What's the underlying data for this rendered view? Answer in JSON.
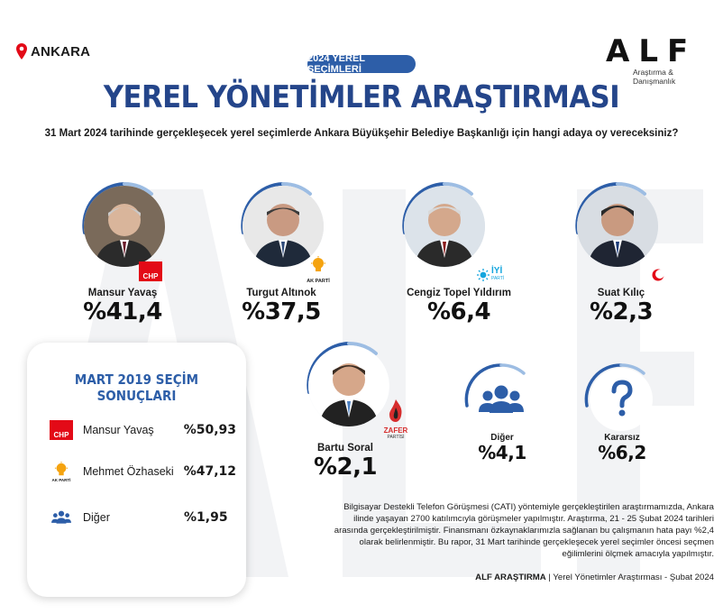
{
  "header": {
    "location": "ANKARA",
    "logo_mark": "ALF",
    "logo_sub": "Araştırma & Danışmanlık",
    "badge": "2024 YEREL SEÇİMLERİ",
    "title": "YEREL YÖNETİMLER ARAŞTIRMASI",
    "question": "31 Mart 2024 tarihinde gerçekleşecek yerel seçimlerde Ankara Büyükşehir Belediye Başkanlığı için hangi adaya oy vereceksiniz?"
  },
  "chart_data": {
    "type": "table",
    "title": "YEREL YÖNETİMLER ARAŞTIRMASI",
    "categories": [
      "Mansur Yavaş",
      "Turgut Altınok",
      "Cengiz Topel Yıldırım",
      "Suat Kılıç",
      "Bartu Soral",
      "Diğer",
      "Kararsız"
    ],
    "values": [
      41.4,
      37.5,
      6.4,
      2.3,
      2.1,
      4.1,
      6.2
    ],
    "labels": [
      "%41,4",
      "%37,5",
      "%6,4",
      "%2,3",
      "%2,1",
      "%4,1",
      "%6,2"
    ],
    "parties": [
      "CHP",
      "AK PARTİ",
      "İYİ PARTİ",
      "YENİDEN REFAH",
      "ZAFER PARTİSİ",
      "",
      ""
    ],
    "party_colors": [
      "#e30a17",
      "#f5a30f",
      "#13a5de",
      "#e30a17",
      "#d62d2d",
      "#2d5ea8",
      "#2d5ea8"
    ]
  },
  "panel": {
    "title": "MART 2019 SEÇİM SONUÇLARI",
    "rows": [
      {
        "name": "Mansur Yavaş",
        "value": "%50,93",
        "logo": "CHP",
        "color": "#e30a17"
      },
      {
        "name": "Mehmet Özhaseki",
        "value": "%47,12",
        "logo": "AK PARTİ",
        "color": "#f5a30f"
      },
      {
        "name": "Diğer",
        "value": "%1,95",
        "logo": "",
        "color": "#2d5ea8"
      }
    ]
  },
  "party_labels": {
    "chp": "CHP",
    "ak": "AK PARTİ",
    "iyi": "İYİ",
    "iyi_sub": "PARTİ",
    "zafer": "ZAFER",
    "zafer_sub": "PARTİSİ"
  },
  "icons": {
    "other": "people-group-icon",
    "undecided": "question-mark-icon",
    "location": "map-pin-icon"
  },
  "methodology": "Bilgisayar Destekli Telefon Görüşmesi (CATI) yöntemiyle gerçekleştirilen araştırmamızda, Ankara ilinde yaşayan 2700 katılımcıyla görüşmeler yapılmıştır. Araştırma, 21 - 25 Şubat 2024 tarihleri arasında gerçekleştirilmiştir. Finansmanı özkaynaklarımızla sağlanan bu çalışmanın hata payı %2,4 olarak belirlenmiştir. Bu rapor, 31 Mart tarihinde gerçekleşecek yerel seçimler öncesi seçmen eğilimlerini ölçmek amacıyla yapılmıştır.",
  "footer": {
    "brand": "ALF ARAŞTIRMA",
    "text": "| Yerel Yönetimler Araştırması - Şubat 2024"
  }
}
